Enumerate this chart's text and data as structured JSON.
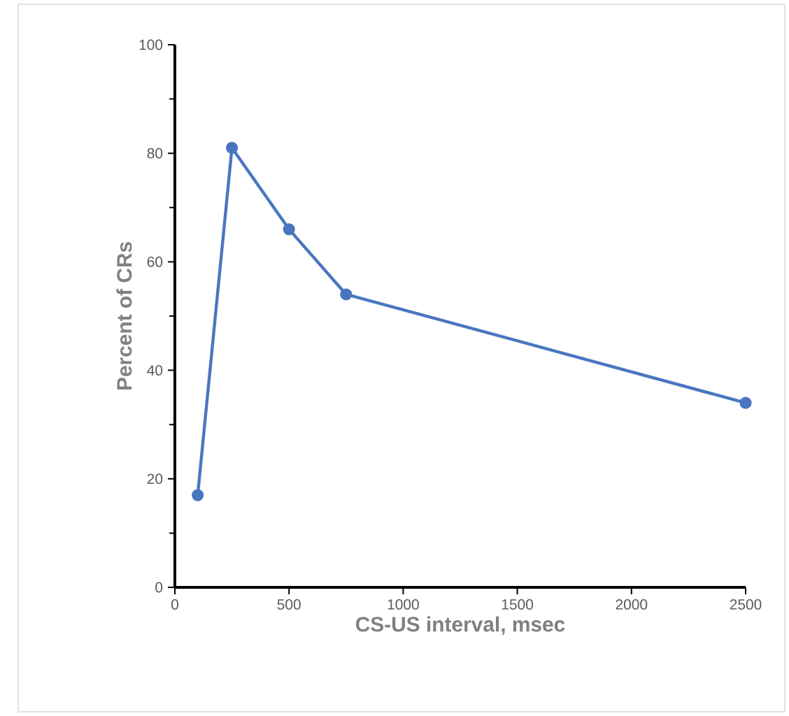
{
  "chart_data": {
    "type": "line",
    "xlabel": "CS-US interval, msec",
    "ylabel": "Percent of CRs",
    "x": [
      100,
      250,
      500,
      750,
      2500
    ],
    "series": [
      {
        "color": "#4a76c0",
        "values": [
          17,
          81,
          66,
          54,
          34
        ]
      }
    ],
    "xlim": [
      0,
      2500
    ],
    "ylim": [
      0,
      100
    ],
    "xticks": [
      0,
      500,
      1000,
      1500,
      2000,
      2500
    ],
    "yticks": [
      0,
      20,
      40,
      60,
      80,
      100
    ],
    "marker": "circle",
    "line_style": "solid",
    "grid": false
  }
}
